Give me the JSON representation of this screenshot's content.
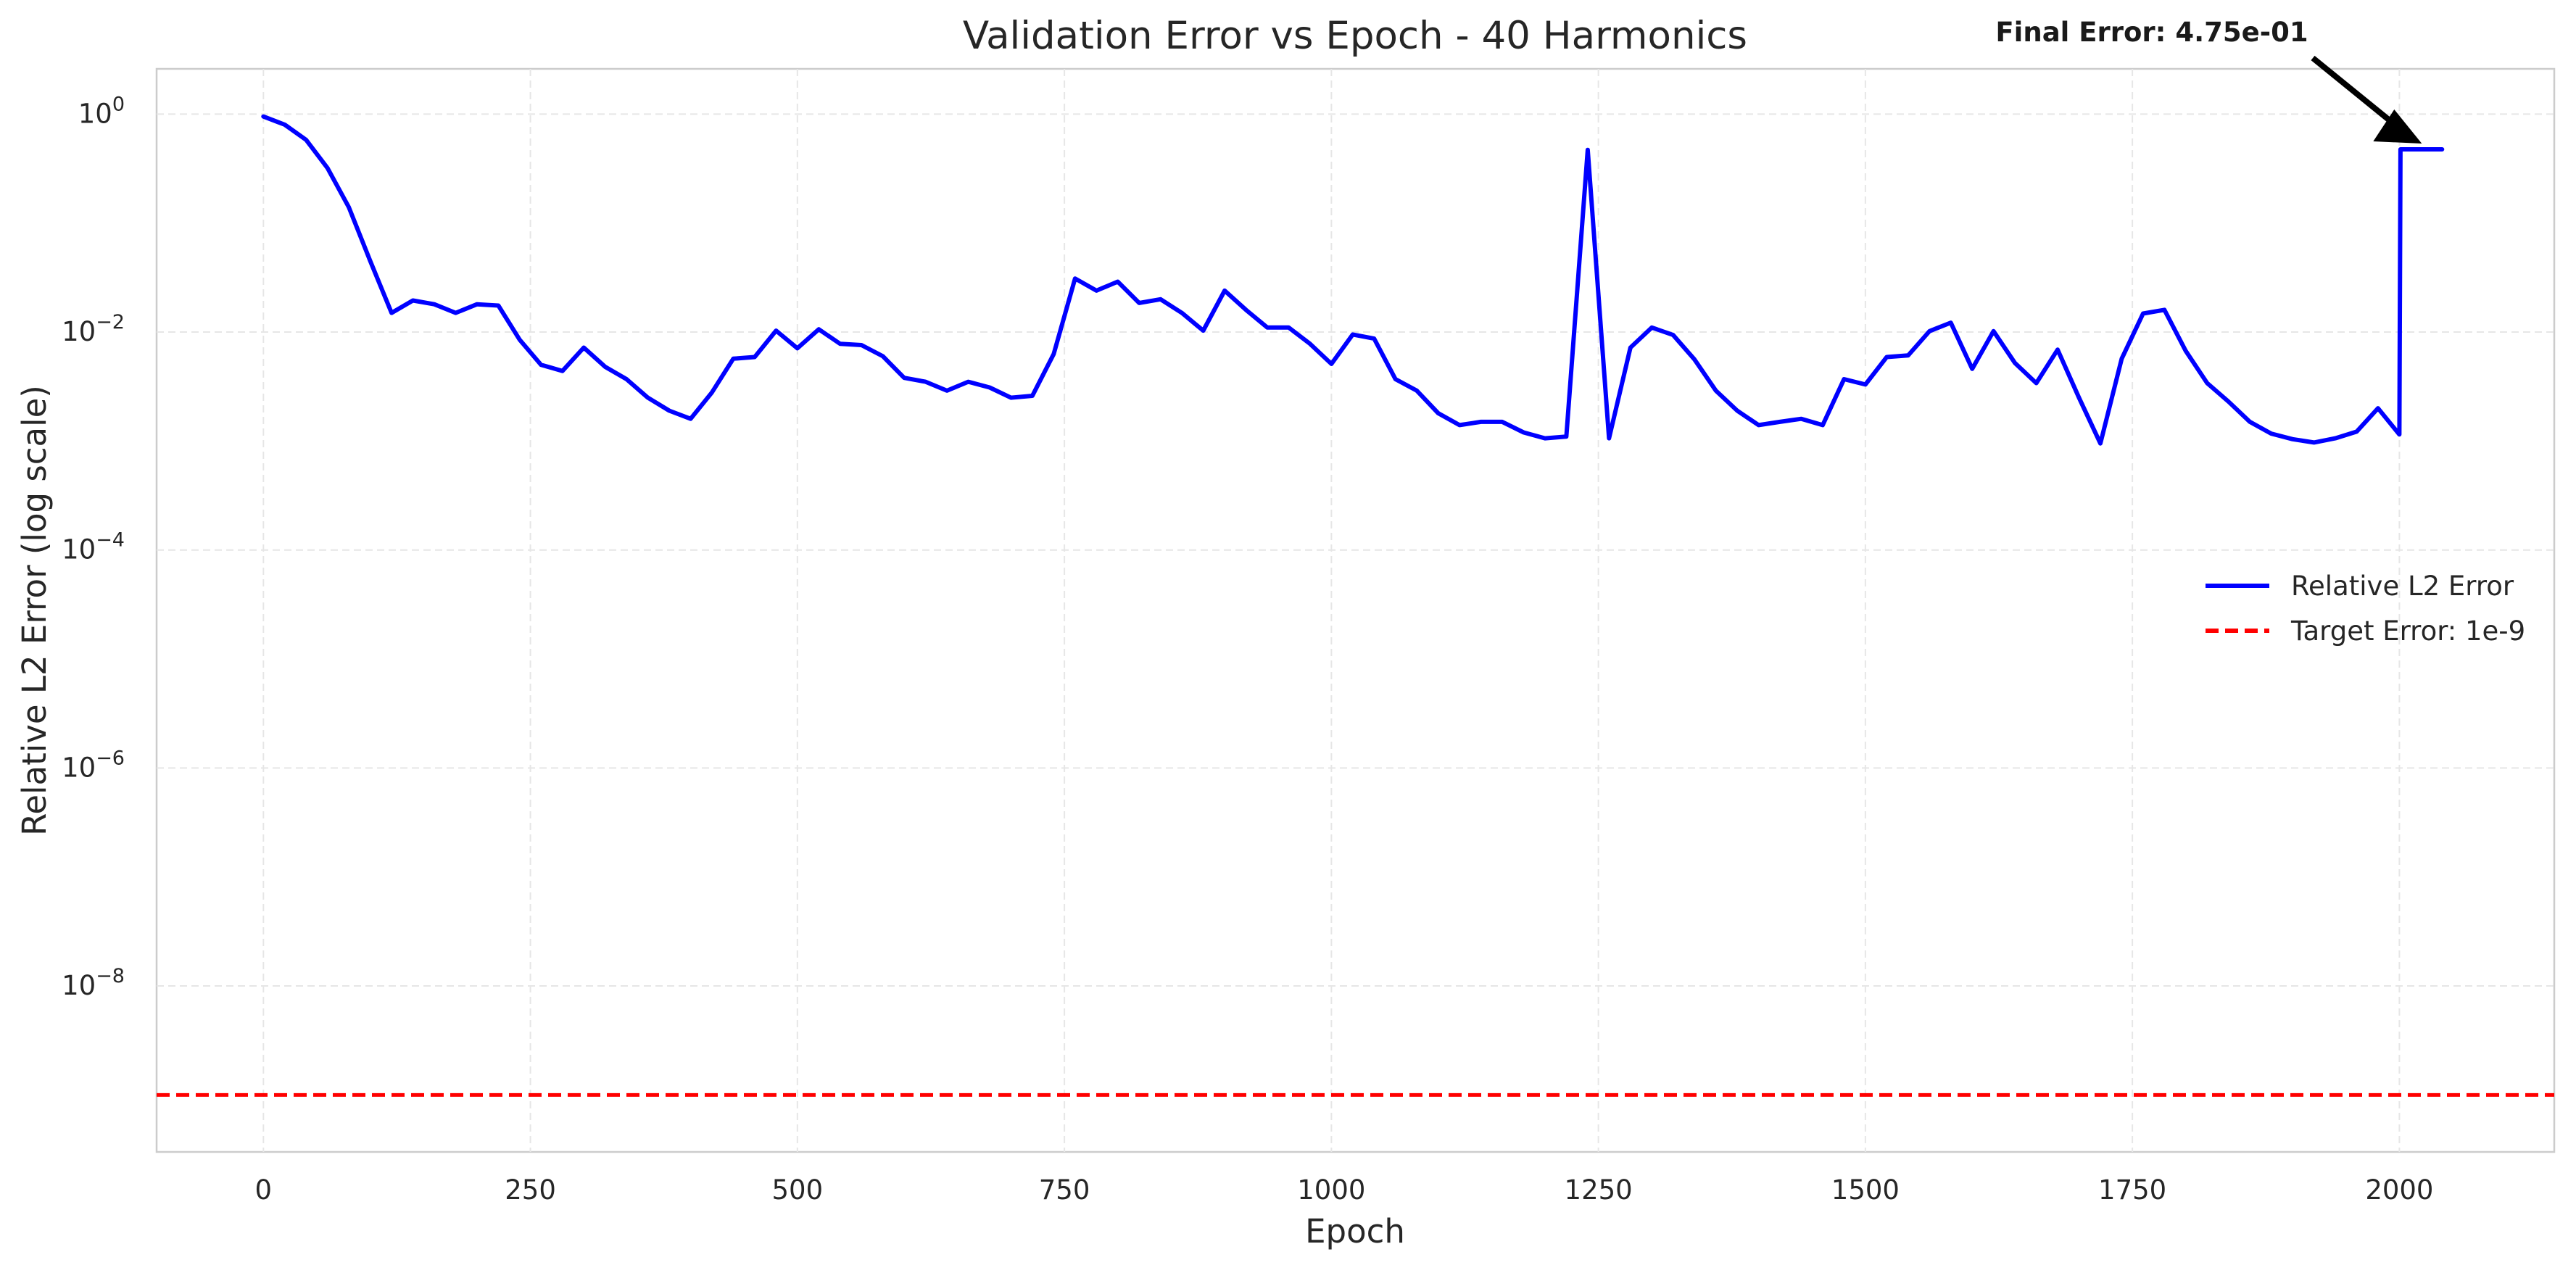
{
  "chart_data": {
    "type": "line",
    "title": "Validation Error vs Epoch - 40 Harmonics",
    "xlabel": "Epoch",
    "ylabel": "Relative L2 Error (log scale)",
    "xlim": [
      -100,
      2145
    ],
    "ylim": [
      3e-10,
      2.6
    ],
    "yscale": "log",
    "grid": true,
    "legend_position": "right",
    "x_ticks": [
      0,
      250,
      500,
      750,
      1000,
      1250,
      1500,
      1750,
      2000
    ],
    "y_ticks": [
      {
        "value": 1,
        "base": "10",
        "exp": "0"
      },
      {
        "value": 0.01,
        "base": "10",
        "exp": "−2"
      },
      {
        "value": 0.0001,
        "base": "10",
        "exp": "−4"
      },
      {
        "value": 1e-06,
        "base": "10",
        "exp": "−6"
      },
      {
        "value": 1e-08,
        "base": "10",
        "exp": "−8"
      }
    ],
    "series": [
      {
        "name": "Relative L2 Error",
        "color": "#0000ff",
        "style": "solid",
        "x": [
          0,
          20,
          40,
          60,
          80,
          100,
          120,
          140,
          160,
          180,
          200,
          220,
          240,
          260,
          280,
          300,
          320,
          340,
          360,
          380,
          400,
          420,
          440,
          460,
          480,
          500,
          520,
          540,
          560,
          580,
          600,
          620,
          640,
          660,
          680,
          700,
          720,
          740,
          760,
          780,
          800,
          820,
          840,
          860,
          880,
          900,
          920,
          940,
          960,
          980,
          1000,
          1020,
          1040,
          1060,
          1080,
          1100,
          1120,
          1140,
          1160,
          1180,
          1200,
          1220,
          1240,
          1260,
          1280,
          1300,
          1320,
          1340,
          1360,
          1380,
          1400,
          1420,
          1440,
          1460,
          1480,
          1500,
          1520,
          1540,
          1560,
          1580,
          1600,
          1620,
          1640,
          1660,
          1680,
          1700,
          1720,
          1740,
          1760,
          1780,
          1800,
          1820,
          1840,
          1860,
          1880,
          1900,
          1920,
          1940,
          1960,
          1980,
          2000,
          2001,
          2040
        ],
        "y": [
          0.95,
          0.8,
          0.58,
          0.32,
          0.14,
          0.045,
          0.015,
          0.0195,
          0.018,
          0.015,
          0.018,
          0.0175,
          0.0085,
          0.005,
          0.0044,
          0.0072,
          0.0048,
          0.0037,
          0.0025,
          0.0019,
          0.0016,
          0.0028,
          0.0057,
          0.0059,
          0.0103,
          0.0071,
          0.0106,
          0.0078,
          0.0076,
          0.006,
          0.0038,
          0.0035,
          0.0029,
          0.0035,
          0.0031,
          0.0025,
          0.0026,
          0.0063,
          0.031,
          0.024,
          0.029,
          0.0185,
          0.02,
          0.015,
          0.0103,
          0.024,
          0.016,
          0.011,
          0.011,
          0.0078,
          0.0051,
          0.0095,
          0.0087,
          0.0037,
          0.0029,
          0.0018,
          0.0014,
          0.0015,
          0.0015,
          0.0012,
          0.00106,
          0.0011,
          0.47,
          0.00106,
          0.0072,
          0.011,
          0.0094,
          0.0056,
          0.0029,
          0.0019,
          0.0014,
          0.0015,
          0.0016,
          0.0014,
          0.0037,
          0.0033,
          0.0059,
          0.0061,
          0.0102,
          0.0122,
          0.0046,
          0.0102,
          0.0052,
          0.0034,
          0.0069,
          0.0025,
          0.00095,
          0.0057,
          0.0148,
          0.016,
          0.0067,
          0.0034,
          0.0023,
          0.0015,
          0.00117,
          0.00104,
          0.00097,
          0.00106,
          0.00122,
          0.002,
          0.00115,
          0.475,
          0.475
        ]
      },
      {
        "name": "Target Error: 1e-9",
        "color": "#ff0000",
        "style": "dashed",
        "y_constant": 1e-09
      }
    ],
    "annotations": [
      {
        "text": "Final Error: 4.75e-01",
        "x": 2040,
        "y": 0.475
      }
    ]
  }
}
